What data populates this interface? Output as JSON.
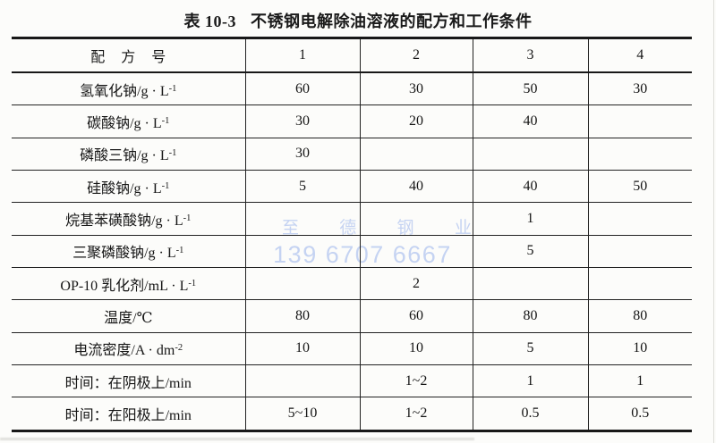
{
  "title": {
    "number": "表 10-3",
    "caption": "不锈钢电解除油溶液的配方和工作条件"
  },
  "watermark": {
    "company": "至 德 钢 业",
    "phone": "139 6707 6667"
  },
  "colors": {
    "ink": "#1a1a1a",
    "paper": "#fcfcfa",
    "watermark_blue": "#c5d3f2"
  },
  "table": {
    "header": {
      "label": "配 方 号",
      "label_sup": "",
      "values": [
        "1",
        "2",
        "3",
        "4"
      ]
    },
    "rows": [
      {
        "label": "氢氧化钠/g · L",
        "label_sup": "-1",
        "values": [
          "60",
          "30",
          "50",
          "30"
        ]
      },
      {
        "label": "碳酸钠/g · L",
        "label_sup": "-1",
        "values": [
          "30",
          "20",
          "40",
          ""
        ]
      },
      {
        "label": "磷酸三钠/g · L",
        "label_sup": "-1",
        "values": [
          "30",
          "",
          "",
          ""
        ]
      },
      {
        "label": "硅酸钠/g · L",
        "label_sup": "-1",
        "values": [
          "5",
          "40",
          "40",
          "50"
        ]
      },
      {
        "label": "烷基苯磺酸钠/g · L",
        "label_sup": "-1",
        "values": [
          "",
          "",
          "1",
          ""
        ]
      },
      {
        "label": "三聚磷酸钠/g · L",
        "label_sup": "-1",
        "values": [
          "",
          "",
          "5",
          ""
        ]
      },
      {
        "label": "OP-10 乳化剂/mL · L",
        "label_sup": "-1",
        "values": [
          "",
          "2",
          "",
          ""
        ]
      },
      {
        "label": "温度/℃",
        "label_sup": "",
        "values": [
          "80",
          "60",
          "80",
          "80"
        ]
      },
      {
        "label": "电流密度/A · dm",
        "label_sup": "-2",
        "values": [
          "10",
          "10",
          "5",
          "10"
        ]
      },
      {
        "label": "时间：在阴极上/min",
        "label_sup": "",
        "values": [
          "",
          "1~2",
          "1",
          "1"
        ]
      },
      {
        "label": "时间：在阳极上/min",
        "label_sup": "",
        "values": [
          "5~10",
          "1~2",
          "0.5",
          "0.5"
        ]
      }
    ]
  }
}
